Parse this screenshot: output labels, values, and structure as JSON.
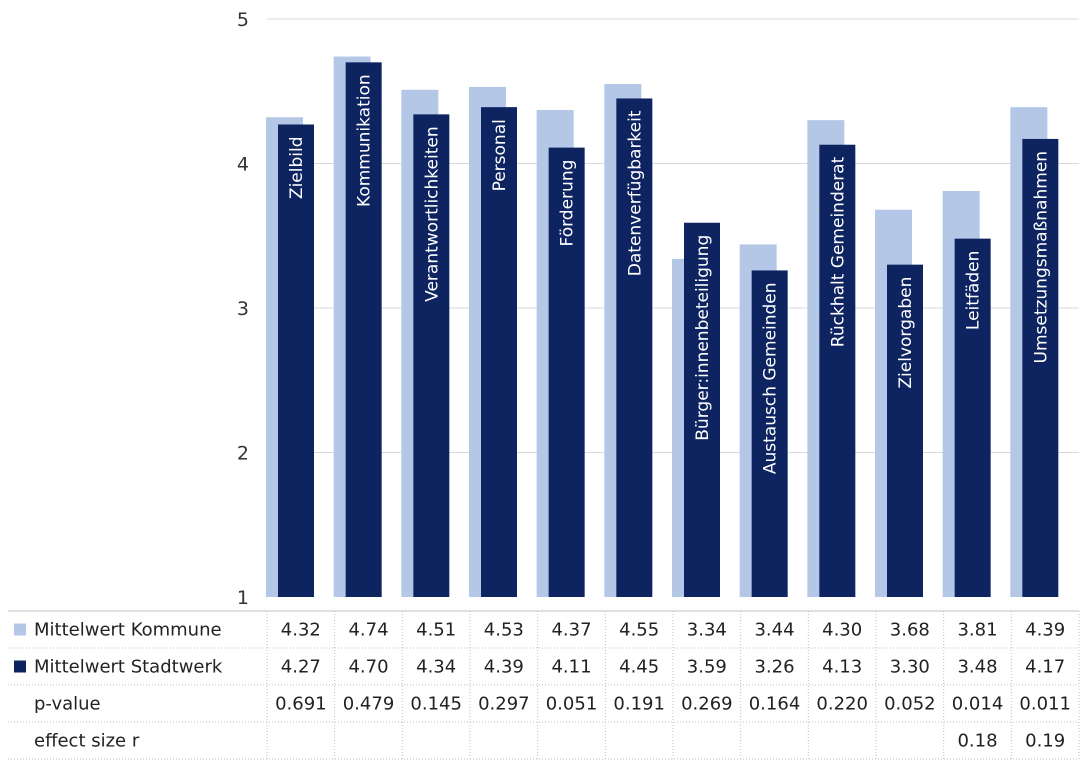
{
  "chart_data": {
    "type": "bar",
    "title": "",
    "xlabel": "",
    "ylabel": "",
    "ylim": [
      1,
      5
    ],
    "yticks": [
      1,
      2,
      3,
      4,
      5
    ],
    "grid": true,
    "legend": "data-table-left",
    "categories": [
      "Zielbild",
      "Kommunikation",
      "Verantwortlichkeiten",
      "Personal",
      "Förderung",
      "Datenverfügbarkeit",
      "Bürger:innenbeteiligung",
      "Austausch Gemeinden",
      "Rückhalt Gemeinderat",
      "Zielvorgaben",
      "Leitfäden",
      "Umsetzungsmaßnahmen"
    ],
    "series": [
      {
        "name": "Mittelwert Kommune",
        "color": "#b4c7e7",
        "values": [
          4.32,
          4.74,
          4.51,
          4.53,
          4.37,
          4.55,
          3.34,
          3.44,
          4.3,
          3.68,
          3.81,
          4.39
        ],
        "labels": [
          "4.32",
          "4.74",
          "4.51",
          "4.53",
          "4.37",
          "4.55",
          "3.34",
          "3.44",
          "4.30",
          "3.68",
          "3.81",
          "4.39"
        ]
      },
      {
        "name": "Mittelwert Stadtwerk",
        "color": "#0d2461",
        "values": [
          4.27,
          4.7,
          4.34,
          4.39,
          4.11,
          4.45,
          3.59,
          3.26,
          4.13,
          3.3,
          3.48,
          4.17
        ],
        "labels": [
          "4.27",
          "4.70",
          "4.34",
          "4.39",
          "4.11",
          "4.45",
          "3.59",
          "3.26",
          "4.13",
          "3.30",
          "3.48",
          "4.17"
        ]
      }
    ],
    "table_rows": [
      {
        "name": "p-value",
        "values": [
          "0.691",
          "0.479",
          "0.145",
          "0.297",
          "0.051",
          "0.191",
          "0.269",
          "0.164",
          "0.220",
          "0.052",
          "0.014",
          "0.011"
        ]
      },
      {
        "name": "effect size r",
        "values": [
          "",
          "",
          "",
          "",
          "",
          "",
          "",
          "",
          "",
          "",
          "0.18",
          "0.19"
        ]
      }
    ]
  }
}
